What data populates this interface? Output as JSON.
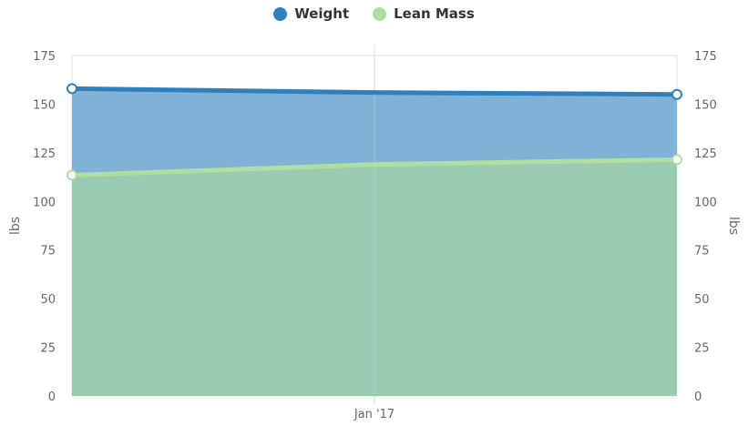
{
  "chart_data": {
    "type": "area",
    "x": [
      "",
      "Jan '17",
      ""
    ],
    "x_tick_labels": [
      "Jan '17"
    ],
    "series": [
      {
        "name": "Weight",
        "color": "#2f7fbd",
        "fill": "#7fb2d6",
        "values": [
          158,
          156,
          155
        ]
      },
      {
        "name": "Lean Mass",
        "color": "#addfa0",
        "fill": "#9acbb3",
        "values": [
          113.5,
          119,
          121.5
        ]
      }
    ],
    "ylabel_left": "lbs",
    "ylabel_right": "lbs",
    "ylim": [
      0,
      175
    ],
    "yticks": [
      0,
      25,
      50,
      75,
      100,
      125,
      150,
      175
    ],
    "legend_position": "top-center",
    "grid": "vertical"
  }
}
